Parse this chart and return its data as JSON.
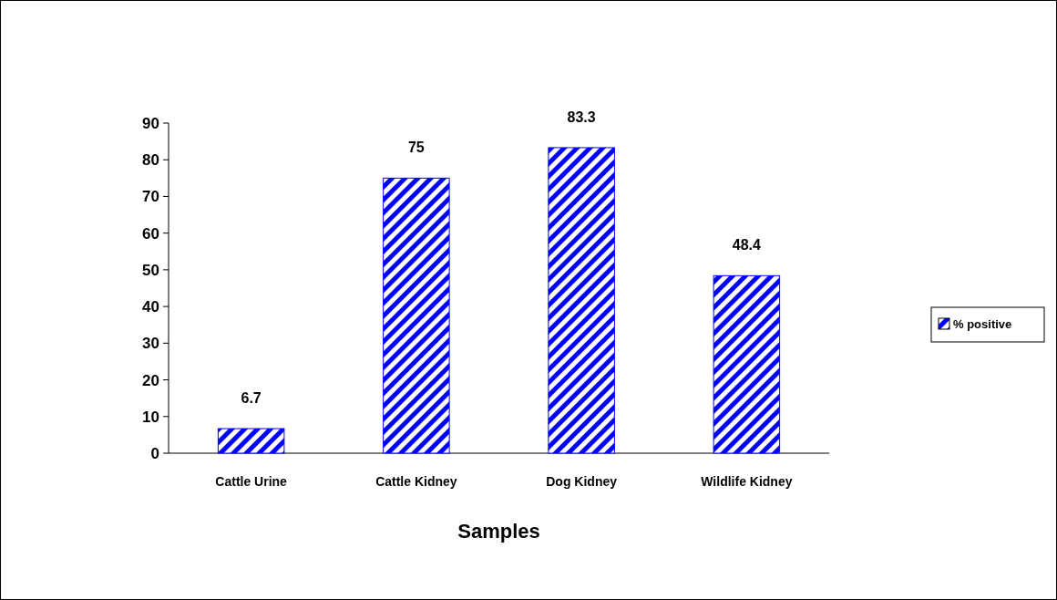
{
  "chart_data": {
    "type": "bar",
    "xlabel": "Samples",
    "categories": [
      "Cattle Urine",
      "Cattle Kidney",
      "Dog Kidney",
      "Wildlife Kidney"
    ],
    "series": [
      {
        "name": "% positive",
        "color": "#0000ff",
        "values": [
          6.7,
          75,
          83.3,
          48.4
        ]
      }
    ],
    "ylim": [
      0,
      90
    ],
    "yticks": [
      0,
      10,
      20,
      30,
      40,
      50,
      60,
      70,
      80,
      90
    ],
    "data_labels": true,
    "legend": "right"
  }
}
